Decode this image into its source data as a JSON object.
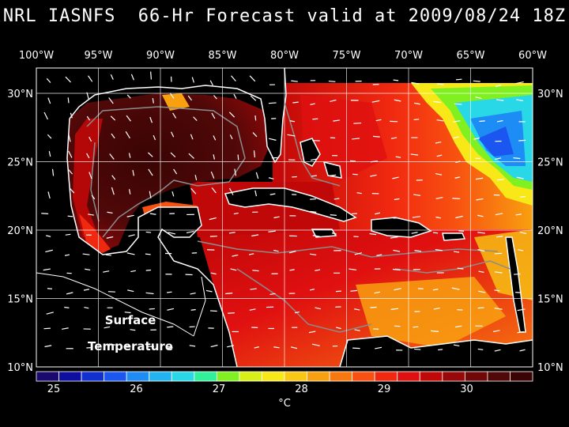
{
  "title": "NRL IASNFS  66-Hr Forecast valid at 2009/08/24 18Z",
  "map": {
    "lon_labels": [
      "100°W",
      "95°W",
      "90°W",
      "85°W",
      "80°W",
      "75°W",
      "70°W",
      "65°W",
      "60°W"
    ],
    "lat_labels": [
      "30°N",
      "25°N",
      "20°N",
      "15°N",
      "10°N"
    ],
    "overlay_line1": "Surface",
    "overlay_line2": "Temperature"
  },
  "colorbar": {
    "tick_labels": [
      "25",
      "26",
      "27",
      "28",
      "29",
      "30"
    ],
    "unit": "°C",
    "colors": [
      "#1a0a6e",
      "#0e0ea0",
      "#1030d0",
      "#1b56f0",
      "#1e8cf5",
      "#22b4f0",
      "#28d8e6",
      "#30f09a",
      "#80f020",
      "#d8f018",
      "#f8e818",
      "#f8c814",
      "#f8a010",
      "#f87810",
      "#f85010",
      "#f02810",
      "#e01010",
      "#c00808",
      "#980808",
      "#700808",
      "#500808",
      "#3a0404"
    ]
  },
  "colors": {
    "land": "#000000",
    "coast": "#ffffff",
    "grid": "#ffffff",
    "bathy": "#8c8c8c"
  }
}
